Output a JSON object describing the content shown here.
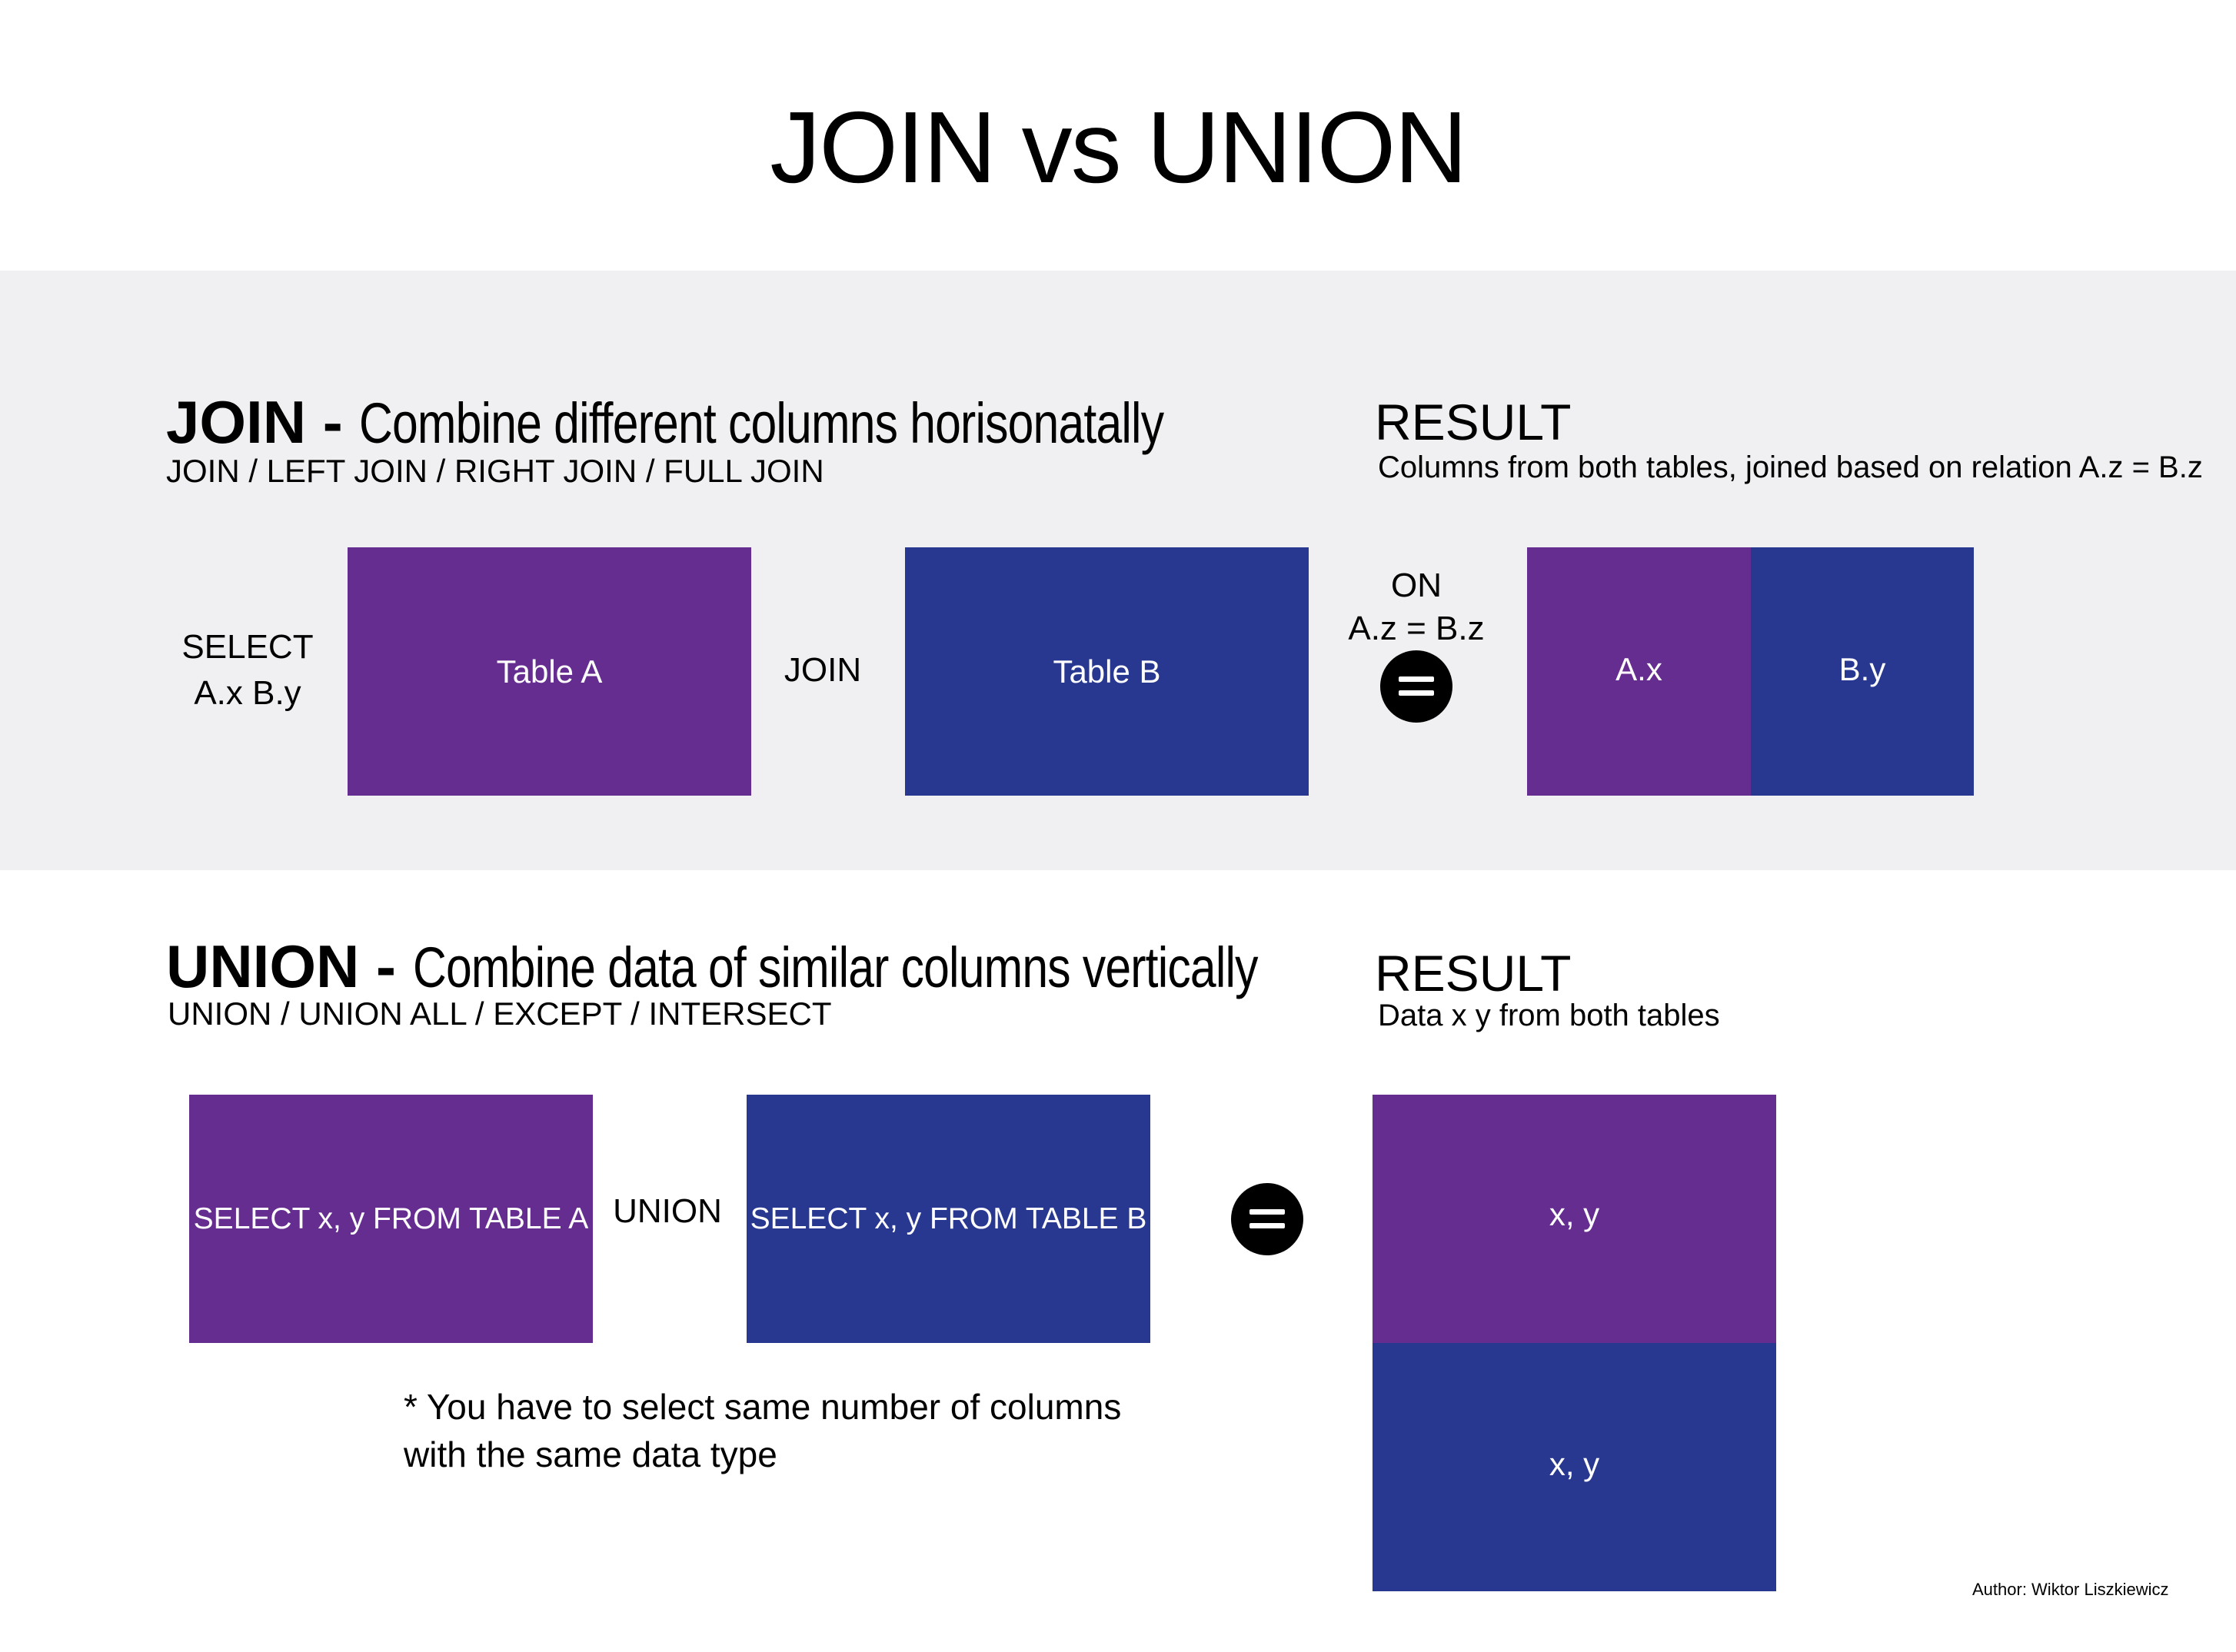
{
  "title": "JOIN vs UNION",
  "colors": {
    "band_background": "#f0f0f2",
    "table_a": "#662d91",
    "table_b": "#283890",
    "equals": "#000000"
  },
  "join": {
    "heading_bold": "JOIN - ",
    "heading_desc": "Combine different columns horisonatally",
    "subheading": "JOIN / LEFT JOIN / RIGHT JOIN / FULL JOIN",
    "select_line1": "SELECT",
    "select_line2": "A.x B.y",
    "table_a_label": "Table A",
    "operator_label": "JOIN",
    "table_b_label": "Table B",
    "on_line1": "ON",
    "on_line2": "A.z = B.z",
    "result_heading": "RESULT",
    "result_sub": "Columns from both tables, joined based on relation A.z = B.z",
    "result_left_label": "A.x",
    "result_right_label": "B.y"
  },
  "union": {
    "heading_bold": "UNION - ",
    "heading_desc": "Combine data of similar columns vertically",
    "subheading": "UNION / UNION ALL / EXCEPT / INTERSECT",
    "query_a_label": "SELECT x, y FROM TABLE A",
    "operator_label": "UNION",
    "query_b_label": "SELECT x, y FROM TABLE B",
    "note_line1": "* You have to select same number of columns",
    "note_line2": "with the same data type",
    "result_heading": "RESULT",
    "result_sub": "Data x y from both tables",
    "result_top_label": "x, y",
    "result_bottom_label": "x, y"
  },
  "author": "Author: Wiktor Liszkiewicz"
}
